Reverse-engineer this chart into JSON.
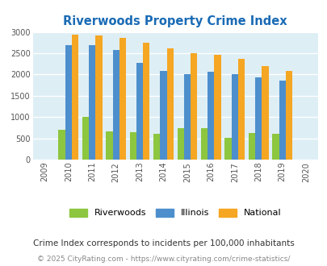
{
  "title": "Riverwoods Property Crime Index",
  "all_years": [
    2009,
    2010,
    2011,
    2012,
    2013,
    2014,
    2015,
    2016,
    2017,
    2018,
    2019,
    2020
  ],
  "data_years": [
    2010,
    2011,
    2012,
    2013,
    2014,
    2015,
    2016,
    2017,
    2018,
    2019
  ],
  "riverwoods": [
    700,
    1010,
    670,
    640,
    600,
    730,
    730,
    520,
    620,
    600
  ],
  "illinois": [
    2680,
    2680,
    2580,
    2280,
    2090,
    2000,
    2060,
    2010,
    1940,
    1850
  ],
  "national": [
    2930,
    2910,
    2860,
    2750,
    2620,
    2500,
    2470,
    2360,
    2190,
    2090
  ],
  "color_riverwoods": "#8dc63f",
  "color_illinois": "#4d8fcc",
  "color_national": "#f5a623",
  "color_bg": "#deeef5",
  "color_title": "#1a6bb5",
  "ylim": [
    0,
    3000
  ],
  "yticks": [
    0,
    500,
    1000,
    1500,
    2000,
    2500,
    3000
  ],
  "footnote1": "Crime Index corresponds to incidents per 100,000 inhabitants",
  "footnote2": "© 2025 CityRating.com - https://www.cityrating.com/crime-statistics/",
  "legend_labels": [
    "Riverwoods",
    "Illinois",
    "National"
  ],
  "bar_width": 0.28
}
